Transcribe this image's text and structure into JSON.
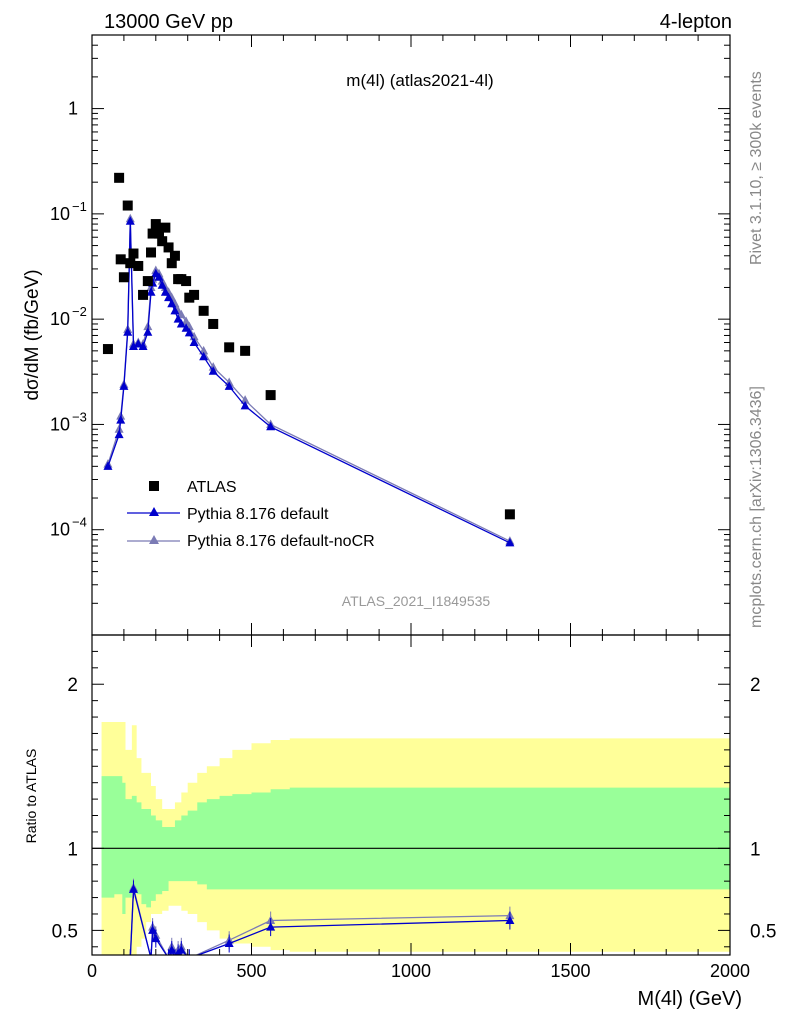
{
  "header": {
    "left": "13000 GeV pp",
    "right": "4-lepton"
  },
  "side_labels": {
    "rivet": "Rivet 3.1.10, ≥ 300k events",
    "mcplots": "mcplots.cern.ch [arXiv:1306.3436]"
  },
  "colors": {
    "atlas": "#000000",
    "default": "#0000cc",
    "nocr": "#7b7bb5",
    "band_outer": "#ffff99",
    "band_inner": "#99ff99"
  },
  "chart_data": [
    {
      "type": "scatter",
      "title": "m(4l) (atlas2021-4l)",
      "ylabel": "dσ/dM (fb/GeV)",
      "xlabel": "",
      "y_scale": "log",
      "xlim": [
        0,
        2000
      ],
      "ylim": [
        1e-05,
        5
      ],
      "y_ticks": [
        {
          "v": 1,
          "label": "1",
          "exp": ""
        },
        {
          "v": 0.1,
          "label": "10",
          "exp": "−1"
        },
        {
          "v": 0.01,
          "label": "10",
          "exp": "−2"
        },
        {
          "v": 0.001,
          "label": "10",
          "exp": "−3"
        },
        {
          "v": 0.0001,
          "label": "10",
          "exp": "−4"
        }
      ],
      "watermark": "ATLAS_2021_I1849535",
      "legend_position": "bottom-left",
      "series": [
        {
          "name": "ATLAS",
          "marker": "square",
          "x": [
            50,
            85,
            90,
            100,
            112,
            120,
            130,
            145,
            160,
            175,
            185,
            190,
            200,
            210,
            220,
            230,
            240,
            250,
            260,
            270,
            280,
            295,
            305,
            320,
            350,
            380,
            430,
            480,
            560,
            1310
          ],
          "y": [
            0.0052,
            0.22,
            0.037,
            0.025,
            0.12,
            0.034,
            0.042,
            0.032,
            0.017,
            0.023,
            0.043,
            0.065,
            0.08,
            0.065,
            0.055,
            0.074,
            0.048,
            0.034,
            0.04,
            0.024,
            0.024,
            0.023,
            0.016,
            0.017,
            0.012,
            0.009,
            0.0054,
            0.005,
            0.0019,
            0.00014
          ]
        },
        {
          "name": "Pythia 8.176 default",
          "marker": "triangle",
          "x": [
            50,
            85,
            90,
            100,
            112,
            120,
            130,
            145,
            160,
            175,
            185,
            190,
            200,
            210,
            220,
            230,
            240,
            250,
            260,
            270,
            280,
            295,
            305,
            320,
            350,
            380,
            430,
            480,
            560,
            1310
          ],
          "y": [
            0.0004,
            0.0008,
            0.0011,
            0.0023,
            0.0075,
            0.085,
            0.0055,
            0.0058,
            0.0055,
            0.0075,
            0.018,
            0.022,
            0.027,
            0.025,
            0.021,
            0.018,
            0.016,
            0.014,
            0.012,
            0.01,
            0.009,
            0.0082,
            0.0074,
            0.006,
            0.0044,
            0.0032,
            0.0023,
            0.0015,
            0.00095,
            7.5e-05
          ]
        },
        {
          "name": "Pythia 8.176 default-noCR",
          "marker": "triangle",
          "x": [
            50,
            85,
            90,
            100,
            112,
            120,
            130,
            145,
            160,
            175,
            185,
            190,
            200,
            210,
            220,
            230,
            240,
            250,
            260,
            270,
            280,
            295,
            305,
            320,
            350,
            380,
            430,
            480,
            560,
            1310
          ],
          "y": [
            0.00042,
            0.0009,
            0.0012,
            0.0024,
            0.008,
            0.09,
            0.0058,
            0.006,
            0.0058,
            0.0085,
            0.02,
            0.024,
            0.029,
            0.027,
            0.023,
            0.02,
            0.018,
            0.016,
            0.014,
            0.012,
            0.011,
            0.0095,
            0.0085,
            0.0068,
            0.005,
            0.0035,
            0.0025,
            0.0017,
            0.001,
            7.8e-05
          ]
        }
      ]
    },
    {
      "type": "line",
      "ylabel": "Ratio to ATLAS",
      "xlabel": "M(4l) (GeV)",
      "xlim": [
        0,
        2000
      ],
      "ylim": [
        0.35,
        2.3
      ],
      "x_ticks": [
        0,
        500,
        1000,
        1500,
        2000
      ],
      "y_ticks": [
        0.5,
        1,
        2
      ],
      "reference_line": 1,
      "bands": {
        "edges": [
          30,
          50,
          70,
          95,
          105,
          125,
          140,
          155,
          170,
          185,
          200,
          220,
          240,
          260,
          280,
          300,
          330,
          360,
          400,
          440,
          500,
          560,
          620,
          1300,
          2000
        ],
        "outer_lo": [
          0.35,
          0.35,
          0.35,
          0.35,
          0.35,
          0.35,
          0.4,
          0.45,
          0.55,
          0.6,
          0.6,
          0.62,
          0.65,
          0.65,
          0.62,
          0.6,
          0.55,
          0.5,
          0.45,
          0.42,
          0.4,
          0.38,
          0.37,
          0.37
        ],
        "outer_hi": [
          1.77,
          1.77,
          1.77,
          1.77,
          1.6,
          1.75,
          1.55,
          1.46,
          1.46,
          1.38,
          1.3,
          1.24,
          1.24,
          1.28,
          1.34,
          1.4,
          1.46,
          1.5,
          1.55,
          1.6,
          1.64,
          1.66,
          1.67,
          1.67
        ],
        "inner_lo": [
          0.7,
          0.7,
          0.72,
          0.6,
          0.7,
          0.75,
          0.72,
          0.66,
          0.64,
          0.68,
          0.72,
          0.74,
          0.8,
          0.8,
          0.8,
          0.8,
          0.78,
          0.75,
          0.75,
          0.75,
          0.75,
          0.75,
          0.75,
          0.75
        ],
        "inner_hi": [
          1.44,
          1.44,
          1.44,
          1.4,
          1.3,
          1.32,
          1.28,
          1.24,
          1.24,
          1.2,
          1.17,
          1.13,
          1.13,
          1.17,
          1.2,
          1.23,
          1.28,
          1.3,
          1.32,
          1.33,
          1.34,
          1.36,
          1.37,
          1.37
        ]
      },
      "series": [
        {
          "name": "Pythia 8.176 default",
          "x": [
            120,
            130,
            185,
            190,
            200,
            240,
            250,
            260,
            270,
            280,
            305,
            430,
            560,
            1310
          ],
          "y": [
            0.33,
            0.75,
            0.33,
            0.5,
            0.45,
            0.33,
            0.38,
            0.33,
            0.36,
            0.38,
            0.33,
            0.42,
            0.52,
            0.56
          ]
        },
        {
          "name": "Pythia 8.176 default-noCR",
          "x": [
            120,
            130,
            185,
            190,
            200,
            240,
            250,
            260,
            270,
            280,
            305,
            430,
            560,
            1310
          ],
          "y": [
            0.33,
            0.76,
            0.33,
            0.52,
            0.47,
            0.33,
            0.4,
            0.33,
            0.38,
            0.4,
            0.33,
            0.44,
            0.56,
            0.59
          ]
        }
      ]
    }
  ]
}
